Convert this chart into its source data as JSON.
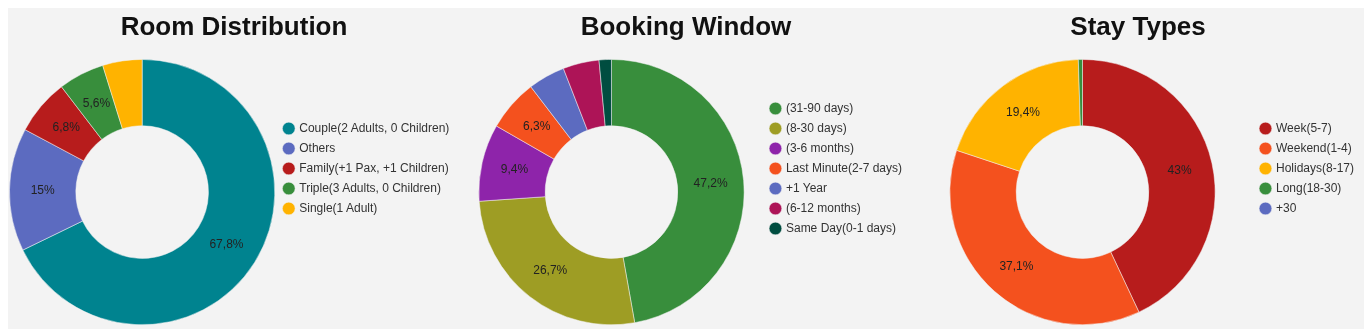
{
  "chart_data": [
    {
      "type": "donut",
      "title": "Room Distribution",
      "categories": [
        "Couple(2 Adults, 0 Children)",
        "Others",
        "Family(+1 Pax, +1 Children)",
        "Triple(3 Adults, 0 Children)",
        "Single(1 Adult)"
      ],
      "values": [
        67.8,
        15,
        6.8,
        5.6,
        4.8
      ],
      "colors": [
        "#00838f",
        "#5c6bc0",
        "#b71c1c",
        "#388e3c",
        "#ffb300"
      ],
      "value_labels": [
        "67,8%",
        "15%",
        "6,8%",
        "5,6%",
        null
      ],
      "legend": "right"
    },
    {
      "type": "donut",
      "title": "Booking Window",
      "categories": [
        "(31-90 days)",
        "(8-30 days)",
        "(3-6 months)",
        "Last Minute(2-7 days)",
        "+1 Year",
        "(6-12 months)",
        "Same Day(0-1 days)"
      ],
      "values": [
        47.2,
        26.7,
        9.4,
        6.3,
        4.5,
        4.4,
        1.5
      ],
      "colors": [
        "#388e3c",
        "#9e9d24",
        "#8e24aa",
        "#f4511e",
        "#5c6bc0",
        "#ad1457",
        "#004d40"
      ],
      "value_labels": [
        "47,2%",
        "26,7%",
        "9,4%",
        "6,3%",
        null,
        null,
        null
      ],
      "legend": "right"
    },
    {
      "type": "donut",
      "title": "Stay Types",
      "categories": [
        "Week(5-7)",
        "Weekend(1-4)",
        "Holidays(8-17)",
        "Long(18-30)",
        "+30"
      ],
      "values": [
        43,
        37.1,
        19.4,
        0.5,
        0
      ],
      "colors": [
        "#b71c1c",
        "#f4511e",
        "#ffb300",
        "#388e3c",
        "#5c6bc0"
      ],
      "value_labels": [
        "43%",
        "37,1%",
        "19,4%",
        null,
        null
      ],
      "legend": "right"
    }
  ]
}
